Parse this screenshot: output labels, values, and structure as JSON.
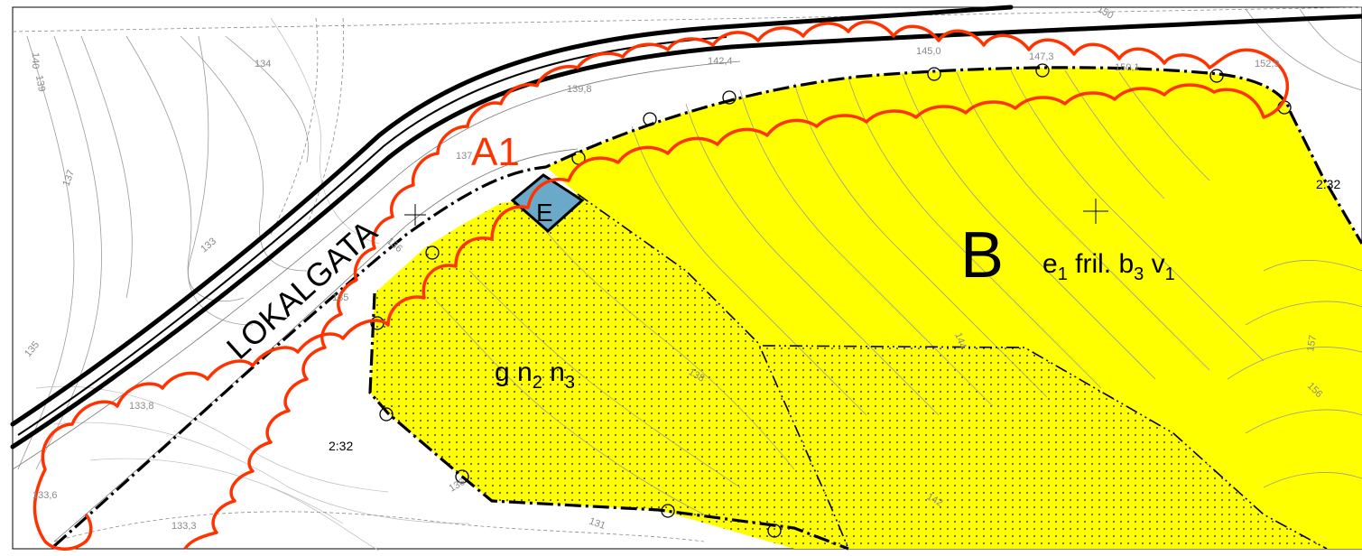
{
  "colors": {
    "yellow_zone": "#ffff00",
    "blue_zone": "#6aa9c8",
    "cloud_red": "#ff3300",
    "road_black": "#000000",
    "contour_grey": "#9a9a9a"
  },
  "labels": {
    "zone_A1": "A1",
    "zone_B": "B",
    "zone_B_code": {
      "e": "e",
      "e_sub": "1",
      "fril": " fril. ",
      "b": "b",
      "b_sub": "3",
      "v": " v",
      "v_sub": "1"
    },
    "zone_E": "E",
    "zone_g": {
      "g": "g n",
      "n2_sub": "2",
      "n3": " n",
      "n3_sub": "3"
    },
    "road_name": "LOKALGATA",
    "slope_left": "2:32",
    "slope_right": "2:32"
  },
  "heights": [
    "134",
    "142,4",
    "145,0",
    "147,3",
    "150,1",
    "152,9",
    "139,8",
    "137",
    "136",
    "135",
    "133,8",
    "133,6",
    "133,3",
    "131",
    "140",
    "139",
    "137",
    "135",
    "133",
    "150",
    "157",
    "156",
    "142",
    "144",
    "138",
    "136"
  ]
}
